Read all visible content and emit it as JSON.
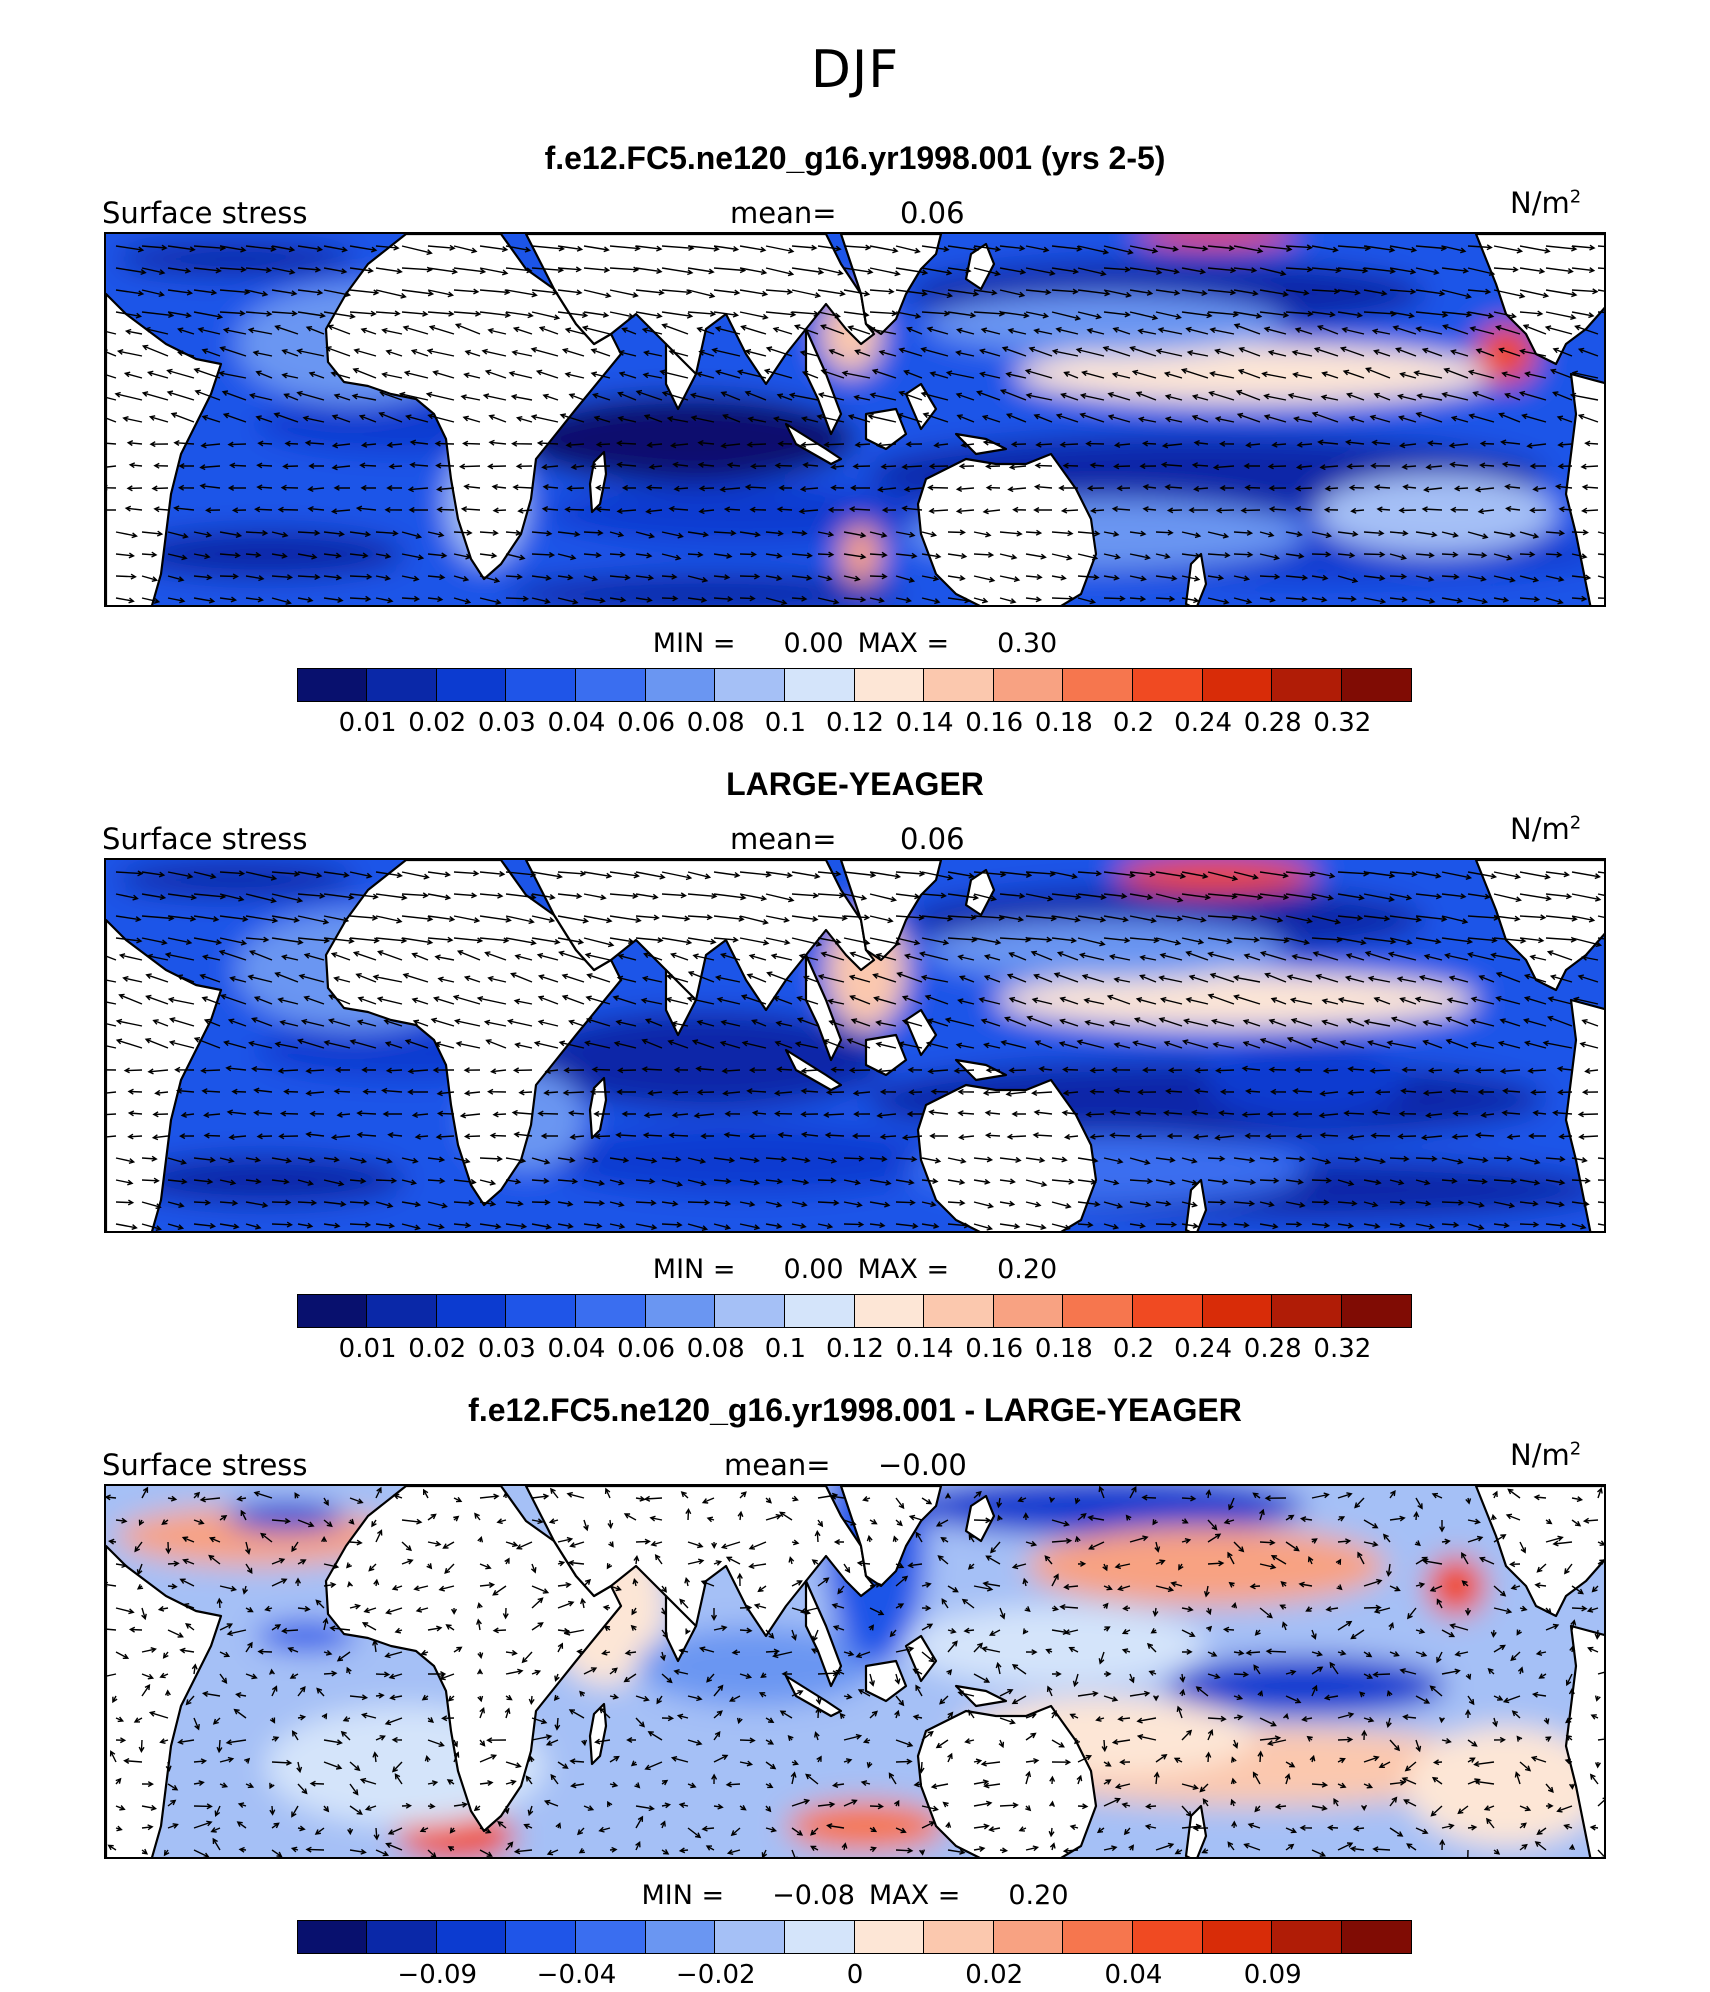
{
  "figure": {
    "title": "DJF"
  },
  "panels": [
    {
      "name": "model",
      "title": "f.e12.FC5.ne120_g16.yr1998.001 (yrs 2-5)",
      "variable": "Surface stress",
      "mean_label": "mean=",
      "mean_value": "0.06",
      "units": "N/m",
      "units_sup": "2",
      "min_label": "MIN =",
      "min_value": "0.00",
      "max_label": "MAX =",
      "max_value": "0.30",
      "scheme": "abs",
      "colorbar_ticks": [
        "0.01",
        "0.02",
        "0.03",
        "0.04",
        "0.06",
        "0.08",
        "0.1",
        "0.12",
        "0.14",
        "0.16",
        "0.18",
        "0.2",
        "0.24",
        "0.28",
        "0.32"
      ]
    },
    {
      "name": "obs",
      "title": "LARGE-YEAGER",
      "variable": "Surface stress",
      "mean_label": "mean=",
      "mean_value": "0.06",
      "units": "N/m",
      "units_sup": "2",
      "min_label": "MIN =",
      "min_value": "0.00",
      "max_label": "MAX =",
      "max_value": "0.20",
      "scheme": "abs",
      "colorbar_ticks": [
        "0.01",
        "0.02",
        "0.03",
        "0.04",
        "0.06",
        "0.08",
        "0.1",
        "0.12",
        "0.14",
        "0.16",
        "0.18",
        "0.2",
        "0.24",
        "0.28",
        "0.32"
      ]
    },
    {
      "name": "diff",
      "title": "f.e12.FC5.ne120_g16.yr1998.001 - LARGE-YEAGER",
      "variable": "Surface stress",
      "mean_label": "mean=",
      "mean_value": "−0.00",
      "units": "N/m",
      "units_sup": "2",
      "min_label": "MIN =",
      "min_value": "−0.08",
      "max_label": "MAX =",
      "max_value": "0.20",
      "scheme": "diff",
      "colorbar_ticks": [
        "−0.09",
        "−0.04",
        "−0.02",
        "0",
        "0.02",
        "0.04",
        "0.09"
      ]
    }
  ],
  "colorbar_colors": [
    "#08106e",
    "#0a28a8",
    "#0c3bd0",
    "#1f55e8",
    "#3a6ef0",
    "#6a96f2",
    "#a5c0f6",
    "#d4e4fa",
    "#fde6d6",
    "#fbc8ae",
    "#f8a282",
    "#f6764e",
    "#f04a22",
    "#d82c08",
    "#b01c06",
    "#800c04"
  ],
  "land_color": "#ffffff",
  "coast_color": "#000000"
}
